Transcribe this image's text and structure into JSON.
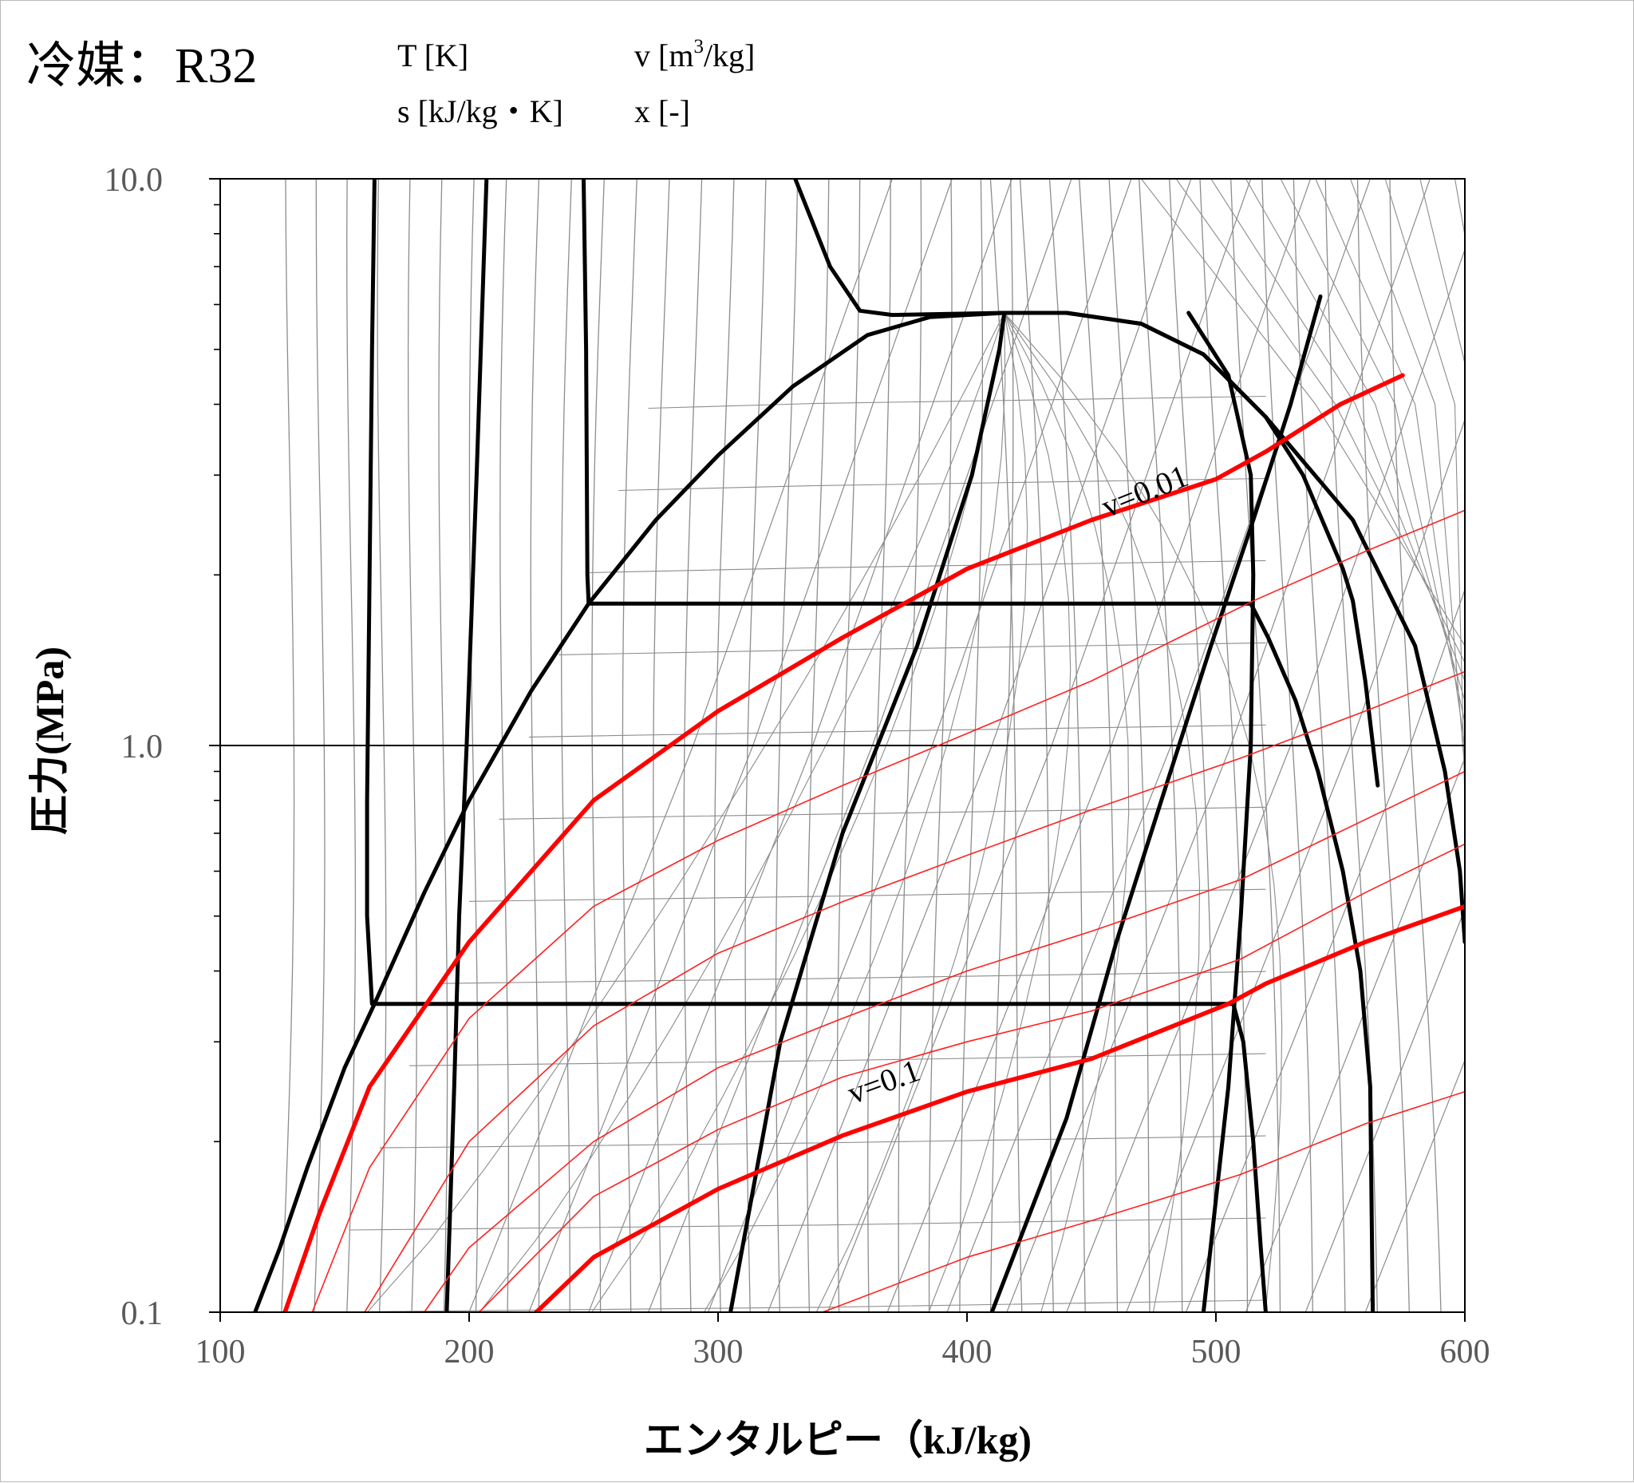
{
  "chart_data": {
    "type": "line",
    "title": "冷媒：R32",
    "property_legend": {
      "T": "T [K]",
      "v_prefix": "v [m",
      "v_sup": "3",
      "v_suffix": "/kg]",
      "s": "s [kJ/kg・K]",
      "x": "x [-]"
    },
    "xlabel": "エンタルピー（kJ/kg)",
    "ylabel": "圧力(MPa)",
    "xlim": [
      100,
      600
    ],
    "ylim": [
      0.1,
      10.0
    ],
    "yscale": "log",
    "xticks": [
      100,
      200,
      300,
      400,
      500,
      600
    ],
    "xtick_labels": [
      "100",
      "200",
      "300",
      "400",
      "500",
      "600"
    ],
    "yticks": [
      0.1,
      1.0,
      10.0
    ],
    "ytick_labels": [
      "0.1",
      "1.0",
      "10.0"
    ],
    "grid": "horizontal line at 1.0 MPa",
    "colors": {
      "highlight": "#ff0000",
      "thin_red": "#ff2020",
      "grid": "#8c8c8c",
      "bold": "#000000"
    },
    "annotations": [
      {
        "text": "v=0.01",
        "x": 473,
        "y": 2.7,
        "rotation": -22
      },
      {
        "text": "v=0.1",
        "x": 368,
        "y": 0.245,
        "rotation": -20
      }
    ],
    "series": [
      {
        "role": "saturation_liquid",
        "style": "bold",
        "points": [
          [
            114,
            0.1
          ],
          [
            124,
            0.13
          ],
          [
            135,
            0.18
          ],
          [
            150,
            0.27
          ],
          [
            162,
            0.35
          ],
          [
            182,
            0.55
          ],
          [
            200,
            0.8
          ],
          [
            225,
            1.25
          ],
          [
            248,
            1.78
          ],
          [
            275,
            2.5
          ],
          [
            300,
            3.25
          ],
          [
            330,
            4.3
          ],
          [
            360,
            5.3
          ],
          [
            385,
            5.7
          ],
          [
            415,
            5.8
          ]
        ]
      },
      {
        "role": "saturation_vapor",
        "style": "bold",
        "points": [
          [
            415,
            5.8
          ],
          [
            440,
            5.8
          ],
          [
            470,
            5.55
          ],
          [
            495,
            4.9
          ],
          [
            520,
            3.8
          ],
          [
            535,
            3.0
          ],
          [
            551,
            2.05
          ],
          [
            555,
            1.8
          ],
          [
            560,
            1.3
          ],
          [
            565,
            0.85
          ]
        ]
      },
      {
        "role": "isotherm",
        "style": "bold",
        "points": [
          [
            331,
            10.0
          ],
          [
            345,
            7.0
          ],
          [
            357,
            5.85
          ],
          [
            370,
            5.75
          ],
          [
            415,
            5.8
          ],
          [
            440,
            5.8
          ],
          [
            470,
            5.55
          ],
          [
            495,
            4.9
          ],
          [
            520,
            3.8
          ],
          [
            555,
            2.5
          ],
          [
            580,
            1.5
          ],
          [
            592,
            0.9
          ],
          [
            598,
            0.6
          ],
          [
            600,
            0.45
          ]
        ]
      },
      {
        "role": "isotherm",
        "style": "bold",
        "points": [
          [
            246,
            10.0
          ],
          [
            247,
            5.0
          ],
          [
            247.5,
            2.0
          ],
          [
            248,
            1.78
          ],
          [
            514,
            1.78
          ],
          [
            521,
            1.55
          ],
          [
            532,
            1.2
          ],
          [
            541,
            0.9
          ],
          [
            551,
            0.6
          ],
          [
            558,
            0.4
          ],
          [
            562,
            0.25
          ],
          [
            563,
            0.1
          ]
        ]
      },
      {
        "role": "isotherm",
        "style": "bold",
        "points": [
          [
            162,
            10.0
          ],
          [
            161,
            5.0
          ],
          [
            160,
            2.0
          ],
          [
            159,
            0.8
          ],
          [
            159,
            0.5
          ],
          [
            161,
            0.35
          ],
          [
            507,
            0.35
          ],
          [
            511,
            0.3
          ],
          [
            515,
            0.2
          ],
          [
            518,
            0.13
          ],
          [
            520,
            0.1
          ]
        ]
      },
      {
        "role": "isentrope",
        "style": "bold",
        "points": [
          [
            207,
            10.0
          ],
          [
            203,
            3.0
          ],
          [
            199,
            1.0
          ],
          [
            196,
            0.5
          ],
          [
            194,
            0.25
          ],
          [
            191,
            0.1
          ]
        ]
      },
      {
        "role": "isentrope",
        "style": "bold",
        "points": [
          [
            415,
            5.8
          ],
          [
            413,
            5.0
          ],
          [
            402,
            3.0
          ],
          [
            380,
            1.5
          ],
          [
            350,
            0.7
          ],
          [
            325,
            0.3
          ],
          [
            305,
            0.1
          ]
        ]
      },
      {
        "role": "isentrope",
        "style": "bold",
        "points": [
          [
            542,
            6.2
          ],
          [
            530,
            4.0
          ],
          [
            515,
            2.5
          ],
          [
            498,
            1.5
          ],
          [
            480,
            0.85
          ],
          [
            460,
            0.45
          ],
          [
            440,
            0.22
          ],
          [
            410,
            0.1
          ]
        ]
      },
      {
        "role": "isentrope",
        "style": "bold",
        "points": [
          [
            489,
            5.8
          ],
          [
            505,
            4.5
          ],
          [
            514,
            3.0
          ],
          [
            515,
            2.0
          ],
          [
            514,
            1.0
          ],
          [
            510,
            0.5
          ],
          [
            505,
            0.25
          ],
          [
            495,
            0.1
          ]
        ]
      },
      {
        "role": "isochore",
        "label": "v=0.01",
        "style": "bold_red",
        "points": [
          [
            126,
            0.1
          ],
          [
            140,
            0.15
          ],
          [
            160,
            0.25
          ],
          [
            200,
            0.45
          ],
          [
            250,
            0.8
          ],
          [
            300,
            1.15
          ],
          [
            350,
            1.55
          ],
          [
            400,
            2.05
          ],
          [
            450,
            2.5
          ],
          [
            500,
            2.95
          ],
          [
            520,
            3.3
          ],
          [
            550,
            4.0
          ],
          [
            575,
            4.5
          ]
        ]
      },
      {
        "role": "isochore",
        "label": "v=0.1",
        "style": "bold_red",
        "points": [
          [
            227,
            0.1
          ],
          [
            250,
            0.125
          ],
          [
            300,
            0.165
          ],
          [
            350,
            0.205
          ],
          [
            400,
            0.245
          ],
          [
            450,
            0.28
          ],
          [
            505,
            0.35
          ],
          [
            520,
            0.38
          ],
          [
            560,
            0.45
          ],
          [
            600,
            0.52
          ]
        ]
      },
      {
        "role": "isochore",
        "style": "thin_red",
        "points": [
          [
            137,
            0.1
          ],
          [
            160,
            0.18
          ],
          [
            200,
            0.33
          ],
          [
            250,
            0.52
          ],
          [
            300,
            0.68
          ],
          [
            350,
            0.85
          ],
          [
            400,
            1.05
          ],
          [
            450,
            1.3
          ],
          [
            515,
            1.8
          ],
          [
            560,
            2.2
          ],
          [
            600,
            2.6
          ]
        ]
      },
      {
        "role": "isochore",
        "style": "thin_red",
        "points": [
          [
            158,
            0.1
          ],
          [
            200,
            0.2
          ],
          [
            250,
            0.32
          ],
          [
            300,
            0.43
          ],
          [
            350,
            0.53
          ],
          [
            400,
            0.64
          ],
          [
            450,
            0.77
          ],
          [
            510,
            0.95
          ],
          [
            560,
            1.15
          ],
          [
            600,
            1.35
          ]
        ]
      },
      {
        "role": "isochore",
        "style": "thin_red",
        "points": [
          [
            182,
            0.1
          ],
          [
            200,
            0.13
          ],
          [
            250,
            0.2
          ],
          [
            300,
            0.27
          ],
          [
            350,
            0.33
          ],
          [
            400,
            0.4
          ],
          [
            450,
            0.47
          ],
          [
            510,
            0.58
          ],
          [
            560,
            0.74
          ],
          [
            600,
            0.9
          ]
        ]
      },
      {
        "role": "isochore",
        "style": "thin_red",
        "points": [
          [
            204,
            0.1
          ],
          [
            250,
            0.16
          ],
          [
            300,
            0.21
          ],
          [
            350,
            0.26
          ],
          [
            400,
            0.3
          ],
          [
            450,
            0.34
          ],
          [
            510,
            0.42
          ],
          [
            560,
            0.55
          ],
          [
            600,
            0.67
          ]
        ]
      },
      {
        "role": "isochore",
        "style": "thin_red",
        "points": [
          [
            342,
            0.1
          ],
          [
            400,
            0.125
          ],
          [
            450,
            0.145
          ],
          [
            510,
            0.175
          ],
          [
            560,
            0.215
          ],
          [
            600,
            0.245
          ]
        ]
      }
    ]
  }
}
